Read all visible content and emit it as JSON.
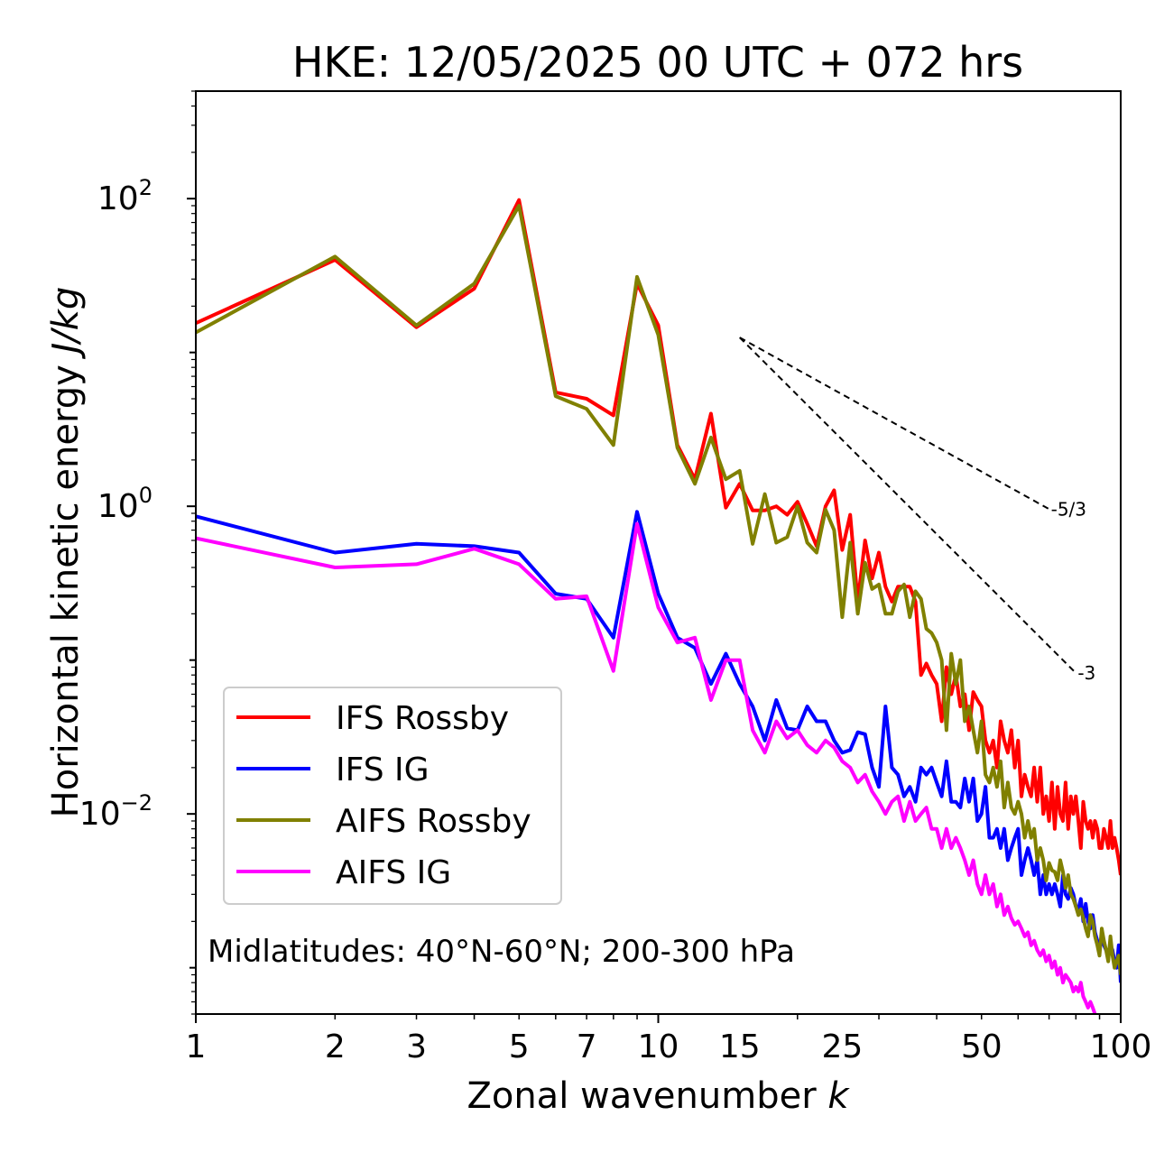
{
  "chart_data": {
    "type": "line",
    "title": "HKE: 12/05/2025 00 UTC + 072 hrs",
    "xlabel": "Zonal wavenumber",
    "xlabel_var": "k",
    "ylabel": "Horizontal kinetic energy",
    "ylabel_unit": "J/kg",
    "xscale": "log",
    "yscale": "log",
    "xlim": [
      1,
      100
    ],
    "ylim": [
      0.0005,
      500
    ],
    "x_ticks": [
      1,
      2,
      3,
      5,
      7,
      10,
      15,
      25,
      50,
      100
    ],
    "x_tick_labels": [
      "1",
      "2",
      "3",
      "5",
      "7",
      "10",
      "15",
      "25",
      "50",
      "100"
    ],
    "y_ticks": [
      {
        "value": 100,
        "base": "10",
        "exp": "2"
      },
      {
        "value": 1,
        "base": "10",
        "exp": "0"
      },
      {
        "value": 0.01,
        "base": "10",
        "exp": "−2"
      }
    ],
    "annotation": "Midlatitudes: 40°N-60°N; 200-300 hPa",
    "legend_position": "lower-left",
    "reference_lines": [
      {
        "label": "-5/3",
        "slope": -1.6667,
        "k0": 15,
        "e0": 12.5,
        "k1": 70
      },
      {
        "label": "-3",
        "slope": -3,
        "k0": 15,
        "e0": 12.5,
        "k1": 80
      }
    ],
    "series": [
      {
        "name": "IFS Rossby",
        "color": "#ff0000",
        "x": [
          1,
          2,
          3,
          4,
          5,
          6,
          7,
          8,
          9,
          10,
          11,
          12,
          13,
          14,
          15,
          16,
          17,
          18,
          19,
          20,
          21,
          22,
          23,
          24,
          25,
          26,
          27,
          28,
          29,
          30,
          31,
          32,
          33,
          34,
          35,
          36,
          37,
          38,
          39,
          40,
          41,
          42,
          43,
          44,
          45,
          46,
          47,
          48,
          49,
          50,
          51,
          52,
          53,
          54,
          55,
          56,
          57,
          58,
          59,
          60,
          61,
          62,
          63,
          64,
          65,
          66,
          67,
          68,
          69,
          70,
          71,
          72,
          73,
          74,
          75,
          76,
          77,
          78,
          79,
          80,
          81,
          82,
          83,
          84,
          85,
          86,
          87,
          88,
          89,
          90,
          91,
          92,
          93,
          94,
          95,
          96,
          97,
          98,
          99,
          100
        ],
        "values": [
          15.5,
          40,
          14.6,
          26,
          98,
          5.5,
          5.0,
          3.9,
          28,
          15,
          2.5,
          1.5,
          4.0,
          0.98,
          1.4,
          0.94,
          0.94,
          1.0,
          0.88,
          1.07,
          0.77,
          0.55,
          1.0,
          1.27,
          0.52,
          0.88,
          0.24,
          0.6,
          0.34,
          0.5,
          0.3,
          0.24,
          0.3,
          0.3,
          0.3,
          0.24,
          0.08,
          0.095,
          0.08,
          0.07,
          0.04,
          0.09,
          0.06,
          0.08,
          0.05,
          0.06,
          0.035,
          0.062,
          0.055,
          0.05,
          0.03,
          0.025,
          0.03,
          0.02,
          0.04,
          0.03,
          0.025,
          0.035,
          0.02,
          0.03,
          0.013,
          0.018,
          0.015,
          0.013,
          0.02,
          0.012,
          0.02,
          0.01,
          0.013,
          0.009,
          0.016,
          0.008,
          0.015,
          0.01,
          0.009,
          0.016,
          0.008,
          0.013,
          0.01,
          0.013,
          0.009,
          0.006,
          0.012,
          0.009,
          0.008,
          0.009,
          0.007,
          0.009,
          0.008,
          0.006,
          0.006,
          0.008,
          0.007,
          0.006,
          0.009,
          0.006,
          0.007,
          0.006,
          0.005,
          0.004
        ]
      },
      {
        "name": "IFS IG",
        "color": "#0000ff",
        "x": [
          1,
          2,
          3,
          4,
          5,
          6,
          7,
          8,
          9,
          10,
          11,
          12,
          13,
          14,
          15,
          16,
          17,
          18,
          19,
          20,
          21,
          22,
          23,
          24,
          25,
          26,
          27,
          28,
          29,
          30,
          31,
          32,
          33,
          34,
          35,
          36,
          37,
          38,
          39,
          40,
          41,
          42,
          43,
          44,
          45,
          46,
          47,
          48,
          49,
          50,
          51,
          52,
          53,
          54,
          55,
          56,
          57,
          58,
          59,
          60,
          61,
          62,
          63,
          64,
          65,
          66,
          67,
          68,
          69,
          70,
          71,
          72,
          73,
          74,
          75,
          76,
          77,
          78,
          79,
          80,
          81,
          82,
          83,
          84,
          85,
          86,
          87,
          88,
          89,
          90,
          91,
          92,
          93,
          94,
          95,
          96,
          97,
          98,
          99,
          100
        ],
        "values": [
          0.86,
          0.5,
          0.57,
          0.55,
          0.5,
          0.27,
          0.25,
          0.14,
          0.92,
          0.27,
          0.14,
          0.12,
          0.07,
          0.11,
          0.07,
          0.05,
          0.03,
          0.055,
          0.036,
          0.035,
          0.05,
          0.04,
          0.04,
          0.03,
          0.025,
          0.026,
          0.034,
          0.033,
          0.02,
          0.015,
          0.05,
          0.02,
          0.018,
          0.013,
          0.015,
          0.012,
          0.02,
          0.018,
          0.02,
          0.016,
          0.013,
          0.022,
          0.012,
          0.012,
          0.011,
          0.017,
          0.012,
          0.017,
          0.009,
          0.01,
          0.015,
          0.007,
          0.007,
          0.008,
          0.006,
          0.008,
          0.005,
          0.006,
          0.007,
          0.008,
          0.004,
          0.005,
          0.006,
          0.005,
          0.004,
          0.005,
          0.003,
          0.004,
          0.003,
          0.0035,
          0.003,
          0.0035,
          0.003,
          0.0025,
          0.004,
          0.003,
          0.0028,
          0.0033,
          0.003,
          0.0025,
          0.0024,
          0.0028,
          0.002,
          0.0026,
          0.002,
          0.0018,
          0.0022,
          0.0017,
          0.0015,
          0.0014,
          0.0016,
          0.0014,
          0.0013,
          0.0012,
          0.0014,
          0.0013,
          0.0011,
          0.001,
          0.0014,
          0.0008
        ]
      },
      {
        "name": "AIFS Rossby",
        "color": "#808000",
        "x": [
          1,
          2,
          3,
          4,
          5,
          6,
          7,
          8,
          9,
          10,
          11,
          12,
          13,
          14,
          15,
          16,
          17,
          18,
          19,
          20,
          21,
          22,
          23,
          24,
          25,
          26,
          27,
          28,
          29,
          30,
          31,
          32,
          33,
          34,
          35,
          36,
          37,
          38,
          39,
          40,
          41,
          42,
          43,
          44,
          45,
          46,
          47,
          48,
          49,
          50,
          51,
          52,
          53,
          54,
          55,
          56,
          57,
          58,
          59,
          60,
          61,
          62,
          63,
          64,
          65,
          66,
          67,
          68,
          69,
          70,
          71,
          72,
          73,
          74,
          75,
          76,
          77,
          78,
          79,
          80,
          81,
          82,
          83,
          84,
          85,
          86,
          87,
          88,
          89,
          90,
          91,
          92,
          93,
          94,
          95,
          96,
          97,
          98,
          99,
          100
        ],
        "values": [
          13.5,
          42,
          15,
          28,
          90,
          5.2,
          4.3,
          2.5,
          31,
          13,
          2.4,
          1.4,
          2.8,
          1.5,
          1.7,
          0.57,
          1.2,
          0.58,
          0.63,
          1.0,
          0.58,
          0.5,
          0.95,
          0.7,
          0.19,
          0.58,
          0.2,
          0.43,
          0.29,
          0.31,
          0.2,
          0.2,
          0.28,
          0.31,
          0.19,
          0.28,
          0.25,
          0.16,
          0.15,
          0.13,
          0.1,
          0.035,
          0.11,
          0.07,
          0.1,
          0.04,
          0.05,
          0.035,
          0.025,
          0.04,
          0.018,
          0.016,
          0.02,
          0.015,
          0.022,
          0.011,
          0.016,
          0.011,
          0.01,
          0.012,
          0.01,
          0.007,
          0.009,
          0.007,
          0.008,
          0.005,
          0.006,
          0.005,
          0.0037,
          0.0048,
          0.0043,
          0.0042,
          0.0037,
          0.005,
          0.0042,
          0.0033,
          0.004,
          0.003,
          0.0028,
          0.0025,
          0.0022,
          0.0024,
          0.0021,
          0.0018,
          0.0016,
          0.0022,
          0.002,
          0.0016,
          0.0014,
          0.0012,
          0.0018,
          0.0015,
          0.0013,
          0.0011,
          0.0016,
          0.0012,
          0.001,
          0.0011,
          0.0012,
          0.0009
        ]
      },
      {
        "name": "AIFS IG",
        "color": "#ff00ff",
        "x": [
          1,
          2,
          3,
          4,
          5,
          6,
          7,
          8,
          9,
          10,
          11,
          12,
          13,
          14,
          15,
          16,
          17,
          18,
          19,
          20,
          21,
          22,
          23,
          24,
          25,
          26,
          27,
          28,
          29,
          30,
          31,
          32,
          33,
          34,
          35,
          36,
          37,
          38,
          39,
          40,
          41,
          42,
          43,
          44,
          45,
          46,
          47,
          48,
          49,
          50,
          51,
          52,
          53,
          54,
          55,
          56,
          57,
          58,
          59,
          60,
          61,
          62,
          63,
          64,
          65,
          66,
          67,
          68,
          69,
          70,
          71,
          72,
          73,
          74,
          75,
          76,
          77,
          78,
          79,
          80,
          81,
          82,
          83,
          84,
          85,
          86,
          87,
          88,
          89,
          90
        ],
        "values": [
          0.62,
          0.4,
          0.42,
          0.53,
          0.42,
          0.25,
          0.26,
          0.085,
          0.77,
          0.22,
          0.13,
          0.14,
          0.055,
          0.1,
          0.1,
          0.035,
          0.025,
          0.04,
          0.031,
          0.035,
          0.028,
          0.025,
          0.03,
          0.027,
          0.022,
          0.02,
          0.016,
          0.018,
          0.014,
          0.012,
          0.01,
          0.012,
          0.013,
          0.009,
          0.012,
          0.009,
          0.01,
          0.011,
          0.008,
          0.008,
          0.006,
          0.008,
          0.006,
          0.007,
          0.006,
          0.005,
          0.004,
          0.005,
          0.0035,
          0.003,
          0.004,
          0.003,
          0.0035,
          0.0025,
          0.003,
          0.0022,
          0.0025,
          0.0021,
          0.0019,
          0.002,
          0.0018,
          0.0016,
          0.0017,
          0.0014,
          0.0015,
          0.0013,
          0.0012,
          0.0013,
          0.0011,
          0.0012,
          0.001,
          0.0011,
          0.0009,
          0.001,
          0.0008,
          0.0009,
          0.00085,
          0.0008,
          0.0007,
          0.00075,
          0.0007,
          0.0008,
          0.00065,
          0.0006,
          0.00055,
          0.0006,
          0.00055,
          0.0005,
          0.00045,
          0.00042
        ]
      }
    ]
  }
}
